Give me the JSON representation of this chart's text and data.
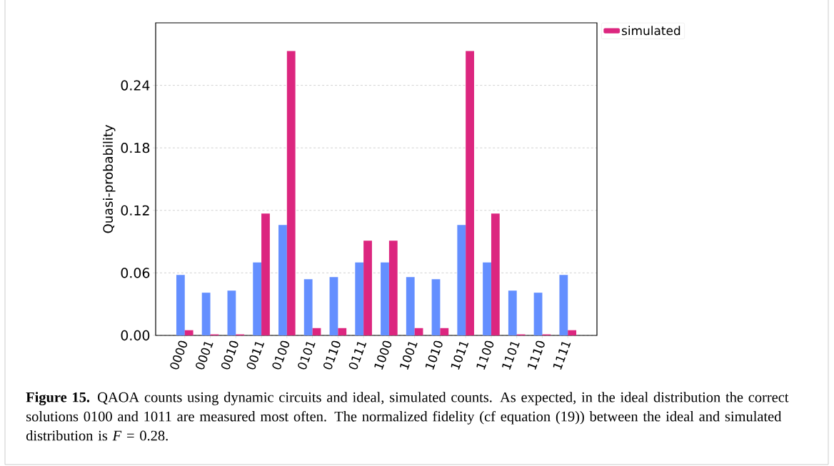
{
  "chart_data": {
    "type": "bar",
    "ylabel": "Quasi-probability",
    "categories": [
      "0000",
      "0001",
      "0010",
      "0011",
      "0100",
      "0101",
      "0110",
      "0111",
      "1000",
      "1001",
      "1010",
      "1011",
      "1100",
      "1101",
      "1110",
      "1111"
    ],
    "series": [
      {
        "color": "#648fff",
        "values": [
          0.058,
          0.041,
          0.043,
          0.07,
          0.106,
          0.054,
          0.056,
          0.07,
          0.07,
          0.056,
          0.054,
          0.106,
          0.07,
          0.043,
          0.041,
          0.058
        ]
      },
      {
        "name": "simulated",
        "color": "#dc267f",
        "values": [
          0.005,
          0.001,
          0.001,
          0.117,
          0.273,
          0.007,
          0.007,
          0.091,
          0.091,
          0.007,
          0.007,
          0.273,
          0.117,
          0.001,
          0.001,
          0.005
        ]
      }
    ],
    "ylim": [
      0,
      0.3
    ],
    "yticks": [
      {
        "value": 0,
        "label": "0.00"
      },
      0.06,
      0.12,
      0.18,
      0.24
    ],
    "grid": "y",
    "legend": "top right",
    "annotations": [
      "**Figure 15.** QAOA counts using dynamic circuits and ideal, simulated counts. As expected, in the ideal distribution the correct solutions 0100 and 1011 are measured most often. The normalized fidelity (cf equation (19)) between the ideal and simulated distribution is *F* = 0.28."
    ]
  }
}
